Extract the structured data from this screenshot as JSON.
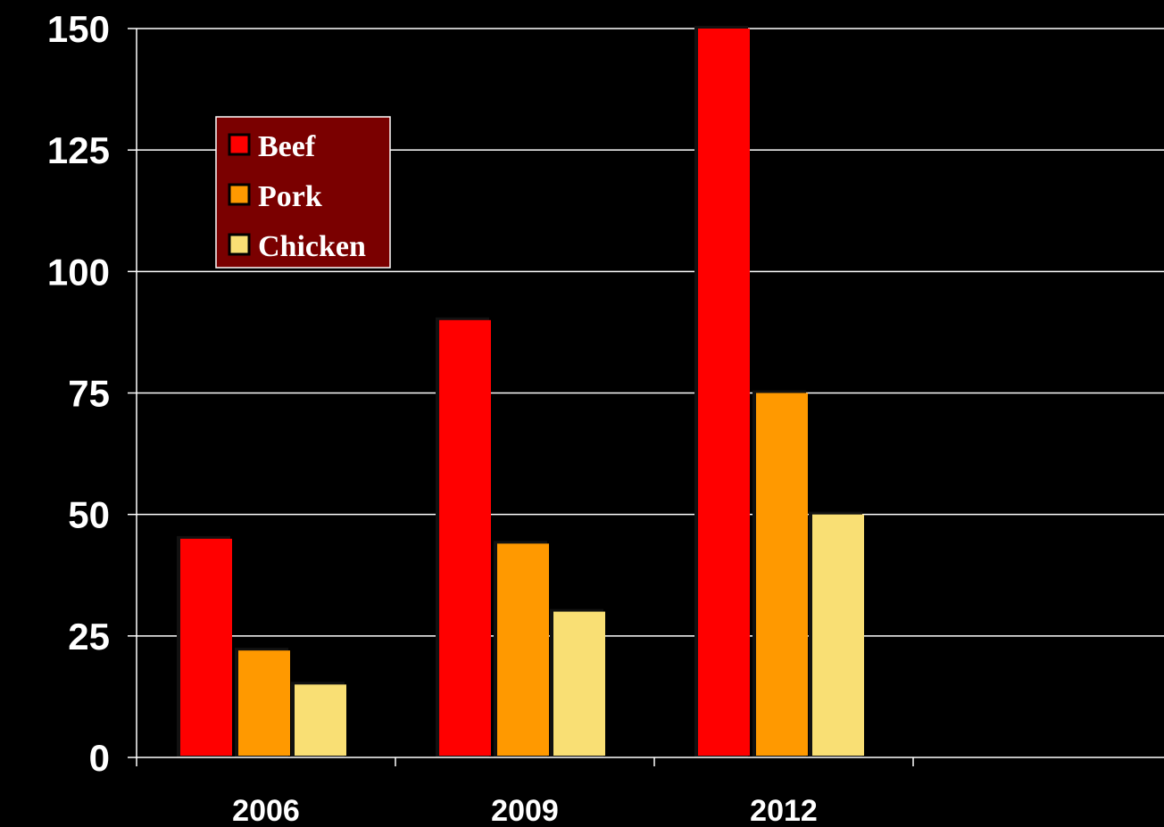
{
  "chart_data": {
    "type": "bar",
    "title": "",
    "xlabel": "",
    "ylabel": "",
    "categories": [
      "2006",
      "2009",
      "2012"
    ],
    "series": [
      {
        "name": "Beef",
        "values": [
          45,
          90,
          150
        ]
      },
      {
        "name": "Pork",
        "values": [
          22,
          44,
          75
        ]
      },
      {
        "name": "Chicken",
        "values": [
          15,
          30,
          50
        ]
      }
    ],
    "ylim": [
      0,
      150
    ],
    "yticks": [
      "0",
      "25",
      "50",
      "75",
      "100",
      "125",
      "150"
    ],
    "grid": true,
    "legend_position": "top-left",
    "colors": {
      "background": "#000000",
      "axis": "#ffffff",
      "legend_bg": "#7a0000",
      "series": [
        "#ff0000",
        "#ff9900",
        "#f9df74"
      ]
    }
  }
}
